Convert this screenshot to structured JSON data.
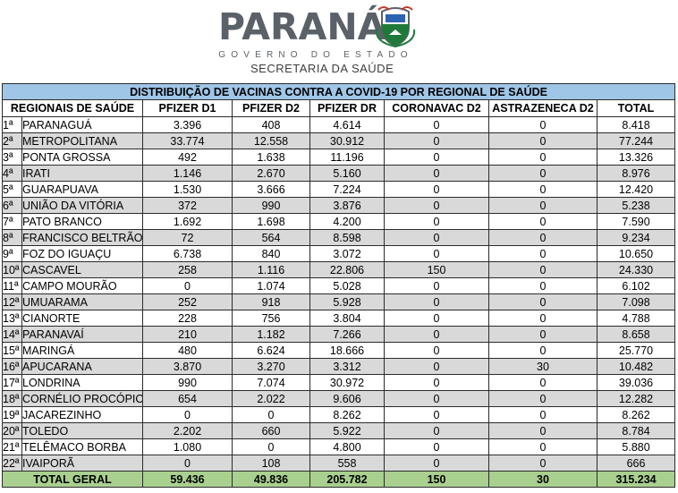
{
  "header": {
    "logo_word": "PARANÁ",
    "logo_sub": "GOVERNO DO ESTADO",
    "secretaria": "SECRETARIA DA SAÚDE"
  },
  "colors": {
    "title_bg": "#9fc6e7",
    "shade_bg": "#d9d9d9",
    "total_bg": "#a9d08e"
  },
  "table": {
    "title": "DISTRIBUIÇÃO DE VACINAS CONTRA A COVID-19 POR REGIONAL DE SAÚDE",
    "columns": [
      "REGIONAIS DE SAÚDE",
      "PFIZER D1",
      "PFIZER D2",
      "PFIZER DR",
      "CORONAVAC D2",
      "ASTRAZENECA D2",
      "TOTAL"
    ],
    "rows": [
      {
        "ord": "1ª",
        "name": "PARANAGUÁ",
        "v": [
          "3.396",
          "408",
          "4.614",
          "0",
          "0",
          "8.418"
        ]
      },
      {
        "ord": "2ª",
        "name": "METROPOLITANA",
        "v": [
          "33.774",
          "12.558",
          "30.912",
          "0",
          "0",
          "77.244"
        ]
      },
      {
        "ord": "3ª",
        "name": "PONTA GROSSA",
        "v": [
          "492",
          "1.638",
          "11.196",
          "0",
          "0",
          "13.326"
        ]
      },
      {
        "ord": "4ª",
        "name": "IRATI",
        "v": [
          "1.146",
          "2.670",
          "5.160",
          "0",
          "0",
          "8.976"
        ]
      },
      {
        "ord": "5ª",
        "name": "GUARAPUAVA",
        "v": [
          "1.530",
          "3.666",
          "7.224",
          "0",
          "0",
          "12.420"
        ]
      },
      {
        "ord": "6ª",
        "name": "UNIÃO DA VITÓRIA",
        "v": [
          "372",
          "990",
          "3.876",
          "0",
          "0",
          "5.238"
        ]
      },
      {
        "ord": "7ª",
        "name": "PATO BRANCO",
        "v": [
          "1.692",
          "1.698",
          "4.200",
          "0",
          "0",
          "7.590"
        ]
      },
      {
        "ord": "8ª",
        "name": "FRANCISCO BELTRÃO",
        "v": [
          "72",
          "564",
          "8.598",
          "0",
          "0",
          "9.234"
        ]
      },
      {
        "ord": "9ª",
        "name": "FOZ DO IGUAÇU",
        "v": [
          "6.738",
          "840",
          "3.072",
          "0",
          "0",
          "10.650"
        ]
      },
      {
        "ord": "10ª",
        "name": "CASCAVEL",
        "v": [
          "258",
          "1.116",
          "22.806",
          "150",
          "0",
          "24.330"
        ]
      },
      {
        "ord": "11ª",
        "name": "CAMPO MOURÃO",
        "v": [
          "0",
          "1.074",
          "5.028",
          "0",
          "0",
          "6.102"
        ]
      },
      {
        "ord": "12ª",
        "name": "UMUARAMA",
        "v": [
          "252",
          "918",
          "5.928",
          "0",
          "0",
          "7.098"
        ]
      },
      {
        "ord": "13ª",
        "name": "CIANORTE",
        "v": [
          "228",
          "756",
          "3.804",
          "0",
          "0",
          "4.788"
        ]
      },
      {
        "ord": "14ª",
        "name": "PARANAVAÍ",
        "v": [
          "210",
          "1.182",
          "7.266",
          "0",
          "0",
          "8.658"
        ]
      },
      {
        "ord": "15ª",
        "name": "MARINGÁ",
        "v": [
          "480",
          "6.624",
          "18.666",
          "0",
          "0",
          "25.770"
        ]
      },
      {
        "ord": "16ª",
        "name": "APUCARANA",
        "v": [
          "3.870",
          "3.270",
          "3.312",
          "0",
          "30",
          "10.482"
        ]
      },
      {
        "ord": "17ª",
        "name": "LONDRINA",
        "v": [
          "990",
          "7.074",
          "30.972",
          "0",
          "0",
          "39.036"
        ]
      },
      {
        "ord": "18ª",
        "name": "CORNÉLIO PROCÓPIO",
        "v": [
          "654",
          "2.022",
          "9.606",
          "0",
          "0",
          "12.282"
        ]
      },
      {
        "ord": "19ª",
        "name": "JACAREZINHO",
        "v": [
          "0",
          "0",
          "8.262",
          "0",
          "0",
          "8.262"
        ]
      },
      {
        "ord": "20ª",
        "name": "TOLEDO",
        "v": [
          "2.202",
          "660",
          "5.922",
          "0",
          "0",
          "8.784"
        ]
      },
      {
        "ord": "21ª",
        "name": "TELÊMACO BORBA",
        "v": [
          "1.080",
          "0",
          "4.800",
          "0",
          "0",
          "5.880"
        ]
      },
      {
        "ord": "22ª",
        "name": "IVAIPORÃ",
        "v": [
          "0",
          "108",
          "558",
          "0",
          "0",
          "666"
        ]
      }
    ],
    "total": {
      "label": "TOTAL GERAL",
      "v": [
        "59.436",
        "49.836",
        "205.782",
        "150",
        "30",
        "315.234"
      ]
    }
  }
}
